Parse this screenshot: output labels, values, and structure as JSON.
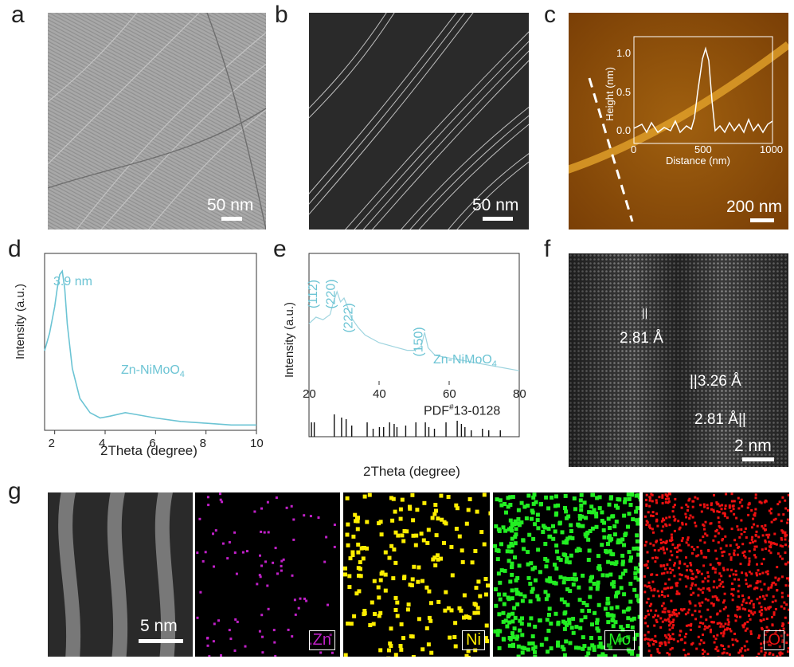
{
  "panel_labels": {
    "a": "a",
    "b": "b",
    "c": "c",
    "d": "d",
    "e": "e",
    "f": "f",
    "g": "g"
  },
  "scale_bars": {
    "a": "50 nm",
    "b": "50 nm",
    "c": "200 nm",
    "f": "2 nm",
    "g": "5 nm"
  },
  "afm_inset": {
    "ylabel": "Height (nm)",
    "xlabel": "Distance (nm)",
    "yticks": [
      "0.0",
      "0.5",
      "1.0"
    ],
    "xticks": [
      "0",
      "500",
      "1000"
    ]
  },
  "chart_data": [
    {
      "type": "line",
      "panel": "d",
      "xlabel": "2Theta (degree)",
      "ylabel": "Intensity (a.u.)",
      "xlim": [
        1.6,
        10
      ],
      "xticks": [
        "2",
        "4",
        "6",
        "8",
        "10"
      ],
      "annotations": [
        "3.9 nm",
        "Zn-NiMoO4"
      ],
      "series": [
        {
          "x": [
            1.6,
            1.8,
            2.0,
            2.1,
            2.2,
            2.3,
            2.4,
            2.5,
            2.7,
            3.0,
            3.4,
            3.8,
            4.2,
            4.8,
            5.2,
            6,
            7,
            8,
            9,
            10
          ],
          "y": [
            0.45,
            0.55,
            0.7,
            0.8,
            0.88,
            0.9,
            0.8,
            0.6,
            0.35,
            0.18,
            0.1,
            0.07,
            0.08,
            0.1,
            0.09,
            0.07,
            0.05,
            0.04,
            0.03,
            0.03
          ]
        }
      ],
      "color": "#6cc4d4"
    },
    {
      "type": "line",
      "panel": "e",
      "xlabel": "2Theta (degree)",
      "ylabel": "Intensity (a.u.)",
      "xlim": [
        20,
        80
      ],
      "xticks": [
        "20",
        "40",
        "60",
        "80"
      ],
      "peak_labels": [
        "(112)",
        "(220)",
        "(222)",
        "(150)"
      ],
      "annotations": [
        "Zn-NiMoO4",
        "PDF#13-0128"
      ],
      "series": [
        {
          "x": [
            20,
            22,
            24,
            26,
            27,
            28,
            29,
            30,
            31,
            32,
            34,
            36,
            40,
            44,
            48,
            50,
            52,
            53,
            54,
            56,
            60,
            64,
            68,
            72,
            76,
            80
          ],
          "y": [
            0.45,
            0.5,
            0.48,
            0.52,
            0.62,
            0.7,
            0.62,
            0.65,
            0.58,
            0.5,
            0.42,
            0.36,
            0.3,
            0.27,
            0.24,
            0.24,
            0.27,
            0.38,
            0.26,
            0.2,
            0.18,
            0.16,
            0.14,
            0.12,
            0.1,
            0.08
          ]
        }
      ],
      "reference_lines_x": [
        20.7,
        21.5,
        27.2,
        29.3,
        30.6,
        32.2,
        36.6,
        38.3,
        40.1,
        41.3,
        43.0,
        44.3,
        45.1,
        47.6,
        50.5,
        53.2,
        54.2,
        55.8,
        59.1,
        62.3,
        63.5,
        64.5,
        66.3,
        69.5,
        71.3,
        74.6
      ],
      "color": "#9ed4df"
    }
  ],
  "panel_f": {
    "spacings": [
      "2.81 Å",
      "3.26 Å",
      "2.81 Å"
    ]
  },
  "panel_g": {
    "maps": [
      {
        "label": "Zn",
        "color": "#c020c8"
      },
      {
        "label": "Ni",
        "color": "#ffee00"
      },
      {
        "label": "Mo",
        "color": "#22ee22"
      },
      {
        "label": "O",
        "color": "#ee1111"
      }
    ]
  }
}
